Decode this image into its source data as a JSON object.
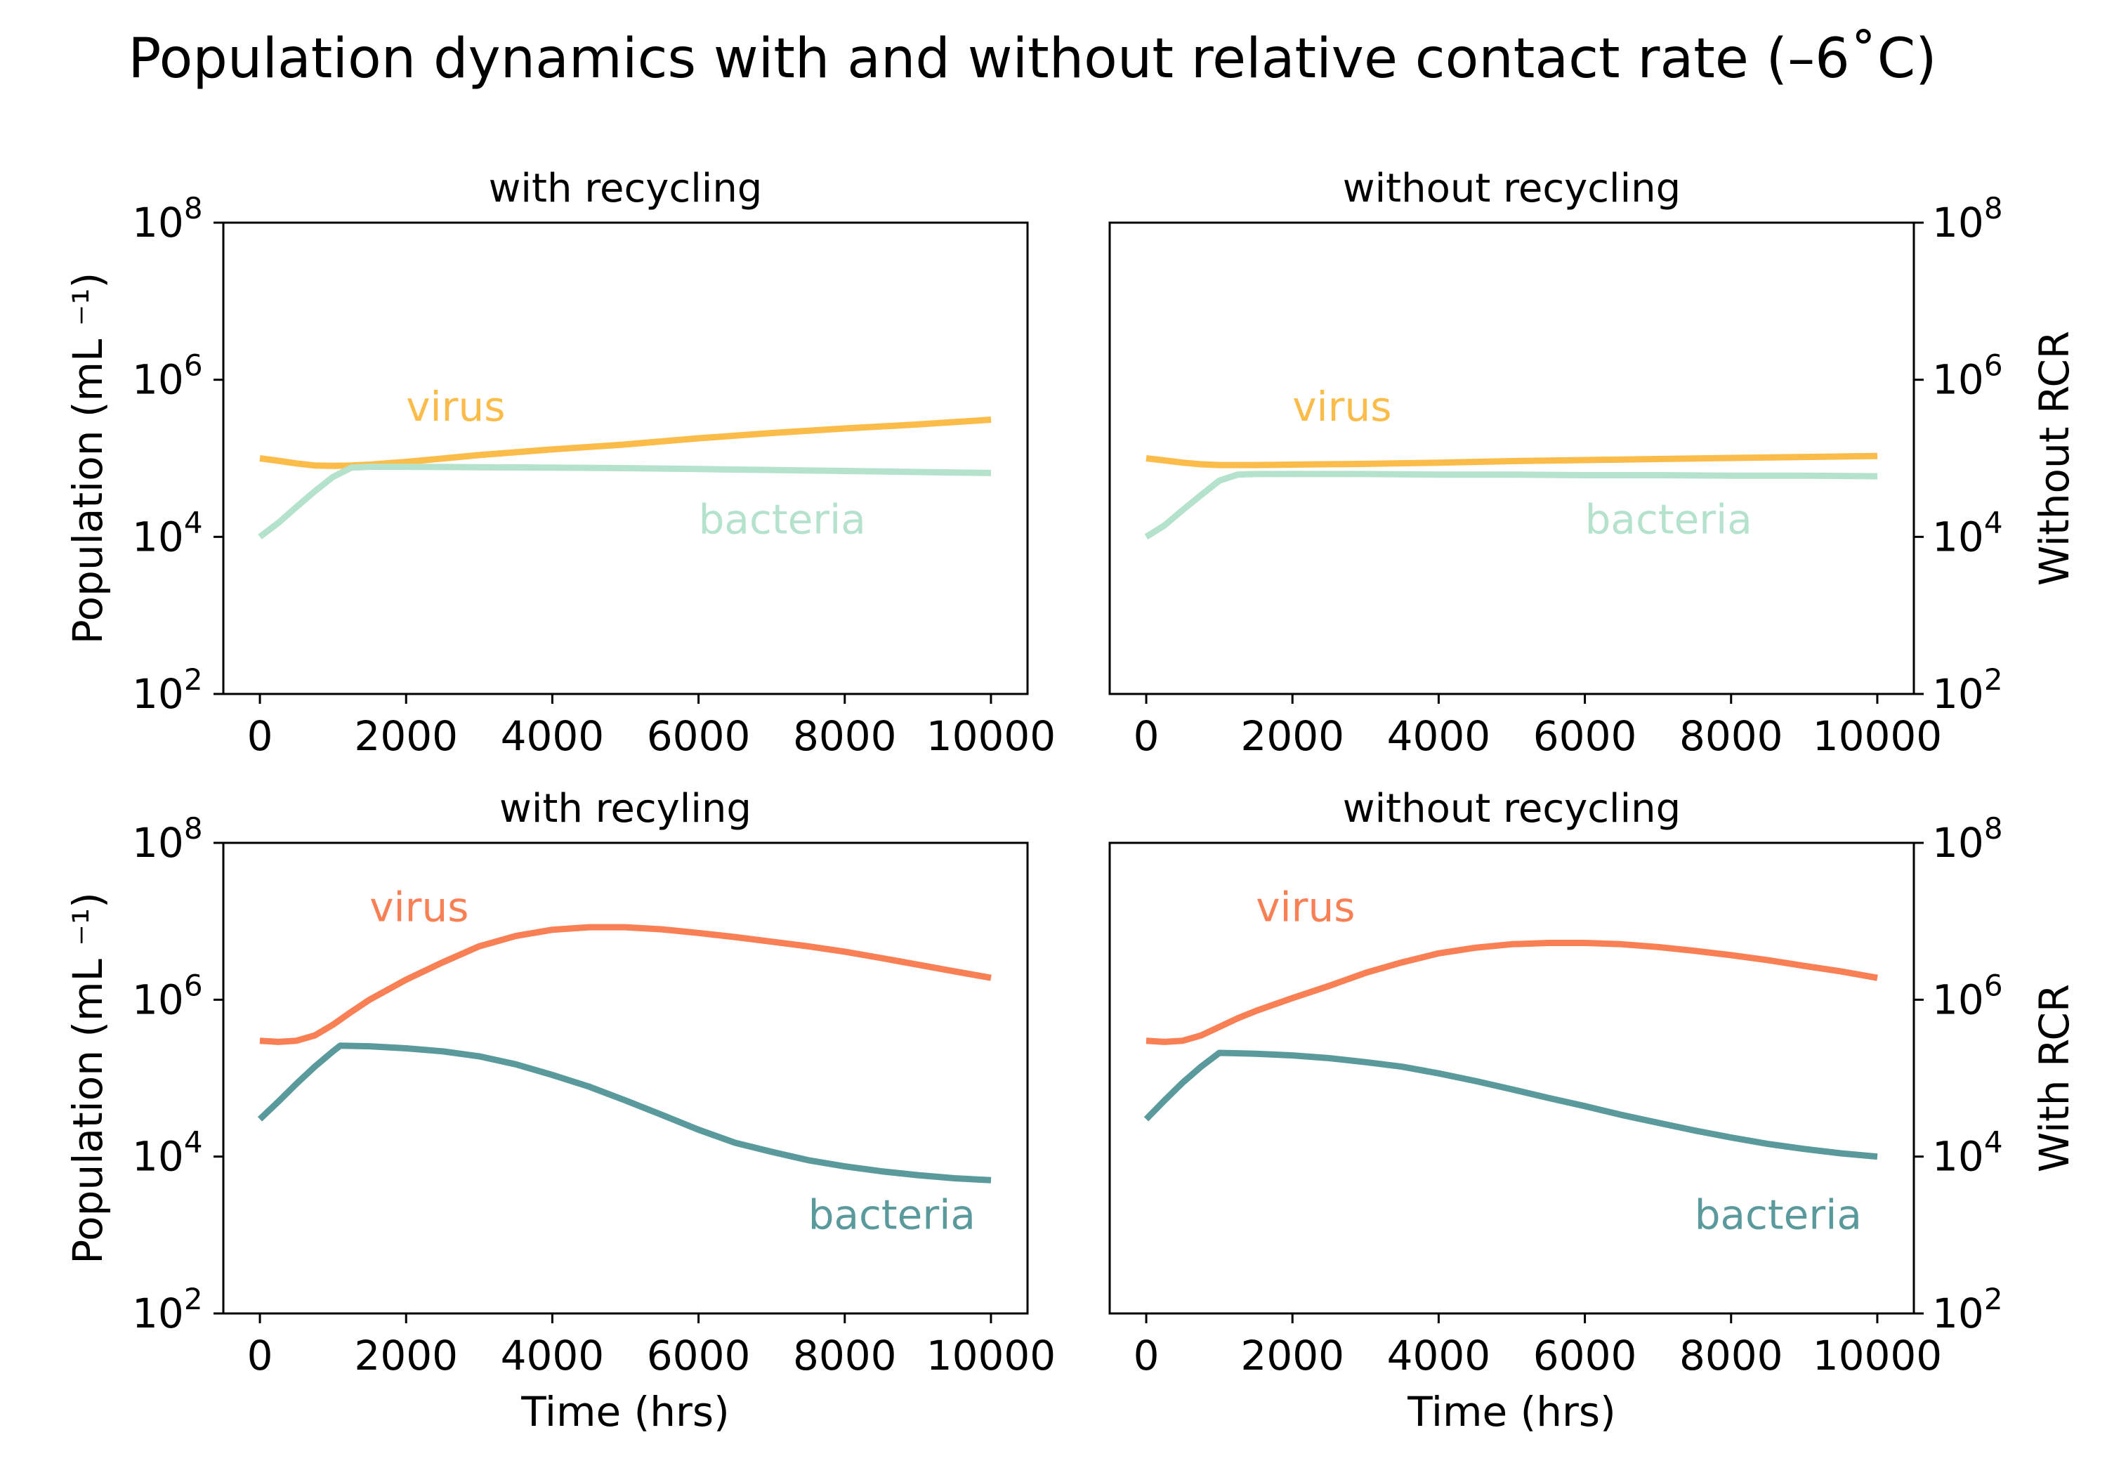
{
  "figure": {
    "title": "Population dynamics with and without relative contact rate (–6˚C)",
    "right_labels": [
      "Without RCR",
      "With RCR"
    ]
  },
  "colors": {
    "virus_top": "#fbbc4a",
    "bacteria_top": "#b5e2cc",
    "virus_bottom": "#f97f54",
    "bacteria_bottom": "#5a9a9c"
  },
  "chart_data": [
    {
      "type": "line",
      "title": "with recycling",
      "xlabel": "",
      "ylabel": "Population (mL ⁻¹)",
      "yscale": "log",
      "xlim": [
        -500,
        10500
      ],
      "ylim": [
        100,
        100000000
      ],
      "xticks": [
        0,
        2000,
        4000,
        6000,
        8000,
        10000
      ],
      "yticks": [
        100,
        10000,
        1000000,
        100000000
      ],
      "ytick_labels": [
        [
          "10",
          "2"
        ],
        [
          "10",
          "4"
        ],
        [
          "10",
          "6"
        ],
        [
          "10",
          "8"
        ]
      ],
      "series": [
        {
          "name": "virus",
          "label_at": [
            2000,
            300000
          ],
          "x": [
            0,
            250,
            500,
            750,
            1000,
            1250,
            1500,
            2000,
            3000,
            4000,
            5000,
            6000,
            7000,
            8000,
            9000,
            10000
          ],
          "y": [
            100000,
            93000,
            86000,
            81000,
            80000,
            81000,
            83000,
            90000,
            110000,
            130000,
            150000,
            180000,
            210000,
            240000,
            270000,
            310000
          ]
        },
        {
          "name": "bacteria",
          "label_at": [
            6000,
            11000
          ],
          "x": [
            0,
            250,
            500,
            750,
            1000,
            1250,
            1500,
            2000,
            3000,
            4000,
            5000,
            6000,
            7000,
            8000,
            9000,
            10000
          ],
          "y": [
            10000,
            15000,
            24000,
            38000,
            58000,
            76000,
            78000,
            78000,
            77000,
            76000,
            75000,
            73000,
            71000,
            69000,
            67000,
            65000
          ]
        }
      ]
    },
    {
      "type": "line",
      "title": "without recycling",
      "xlabel": "",
      "ylabel": "",
      "right_label": "Without RCR",
      "yscale": "log",
      "xlim": [
        -500,
        10500
      ],
      "ylim": [
        100,
        100000000
      ],
      "xticks": [
        0,
        2000,
        4000,
        6000,
        8000,
        10000
      ],
      "yticks": [
        100,
        10000,
        1000000,
        100000000
      ],
      "ytick_labels": [
        [
          "10",
          "2"
        ],
        [
          "10",
          "4"
        ],
        [
          "10",
          "6"
        ],
        [
          "10",
          "8"
        ]
      ],
      "series": [
        {
          "name": "virus",
          "label_at": [
            2000,
            300000
          ],
          "x": [
            0,
            250,
            500,
            750,
            1000,
            1500,
            2000,
            3000,
            4000,
            5000,
            6000,
            7000,
            8000,
            9000,
            10000
          ],
          "y": [
            100000,
            94000,
            88000,
            84000,
            82000,
            82000,
            83000,
            85000,
            88000,
            92000,
            95000,
            98000,
            101000,
            104000,
            107000
          ]
        },
        {
          "name": "bacteria",
          "label_at": [
            6000,
            11000
          ],
          "x": [
            0,
            250,
            500,
            750,
            1000,
            1250,
            1500,
            2000,
            3000,
            4000,
            5000,
            6000,
            7000,
            8000,
            9000,
            10000
          ],
          "y": [
            10000,
            14000,
            22000,
            34000,
            52000,
            62000,
            63000,
            63000,
            63000,
            62000,
            62000,
            61000,
            61000,
            60000,
            60000,
            59000
          ]
        }
      ]
    },
    {
      "type": "line",
      "title": "with recyling",
      "xlabel": "Time (hrs)",
      "ylabel": "Population (mL ⁻¹)",
      "yscale": "log",
      "xlim": [
        -500,
        10500
      ],
      "ylim": [
        100,
        100000000
      ],
      "xticks": [
        0,
        2000,
        4000,
        6000,
        8000,
        10000
      ],
      "yticks": [
        100,
        10000,
        1000000,
        100000000
      ],
      "ytick_labels": [
        [
          "10",
          "2"
        ],
        [
          "10",
          "4"
        ],
        [
          "10",
          "6"
        ],
        [
          "10",
          "8"
        ]
      ],
      "series": [
        {
          "name": "virus",
          "label_at": [
            1500,
            10000000
          ],
          "x": [
            0,
            250,
            500,
            750,
            1000,
            1250,
            1500,
            2000,
            2500,
            3000,
            3500,
            4000,
            4500,
            5000,
            5500,
            6000,
            6500,
            7000,
            7500,
            8000,
            8500,
            9000,
            9500,
            10000
          ],
          "y": [
            300000,
            290000,
            300000,
            350000,
            480000,
            700000,
            1000000,
            1800000,
            3000000,
            4800000,
            6500000,
            7800000,
            8400000,
            8400000,
            7900000,
            7100000,
            6300000,
            5500000,
            4800000,
            4100000,
            3400000,
            2800000,
            2300000,
            1900000
          ]
        },
        {
          "name": "bacteria",
          "label_at": [
            7500,
            1200
          ],
          "x": [
            0,
            250,
            500,
            750,
            1000,
            1100,
            1500,
            2000,
            2500,
            3000,
            3500,
            4000,
            4500,
            5000,
            5500,
            6000,
            6500,
            7000,
            7500,
            8000,
            8500,
            9000,
            9500,
            10000
          ],
          "y": [
            30000,
            50000,
            85000,
            140000,
            220000,
            260000,
            255000,
            240000,
            220000,
            190000,
            150000,
            110000,
            78000,
            52000,
            34000,
            22000,
            15000,
            11500,
            9000,
            7500,
            6500,
            5800,
            5300,
            5000
          ]
        }
      ]
    },
    {
      "type": "line",
      "title": "without recycling",
      "xlabel": "Time (hrs)",
      "ylabel": "",
      "right_label": "With RCR",
      "yscale": "log",
      "xlim": [
        -500,
        10500
      ],
      "ylim": [
        100,
        100000000
      ],
      "xticks": [
        0,
        2000,
        4000,
        6000,
        8000,
        10000
      ],
      "yticks": [
        100,
        10000,
        1000000,
        100000000
      ],
      "ytick_labels": [
        [
          "10",
          "2"
        ],
        [
          "10",
          "4"
        ],
        [
          "10",
          "6"
        ],
        [
          "10",
          "8"
        ]
      ],
      "series": [
        {
          "name": "virus",
          "label_at": [
            1500,
            10000000
          ],
          "x": [
            0,
            250,
            500,
            750,
            1000,
            1250,
            1500,
            2000,
            2500,
            3000,
            3500,
            4000,
            4500,
            5000,
            5500,
            6000,
            6500,
            7000,
            7500,
            8000,
            8500,
            9000,
            9500,
            10000
          ],
          "y": [
            300000,
            290000,
            300000,
            350000,
            450000,
            580000,
            720000,
            1050000,
            1500000,
            2200000,
            3000000,
            3900000,
            4600000,
            5100000,
            5300000,
            5300000,
            5100000,
            4700000,
            4200000,
            3700000,
            3200000,
            2700000,
            2300000,
            1900000
          ]
        },
        {
          "name": "bacteria",
          "label_at": [
            7500,
            1200
          ],
          "x": [
            0,
            250,
            500,
            750,
            1000,
            1500,
            2000,
            2500,
            3000,
            3500,
            4000,
            4500,
            5000,
            5500,
            6000,
            6500,
            7000,
            7500,
            8000,
            8500,
            9000,
            9500,
            10000
          ],
          "y": [
            30000,
            52000,
            88000,
            140000,
            210000,
            205000,
            195000,
            180000,
            160000,
            140000,
            115000,
            92000,
            72000,
            56000,
            44000,
            34000,
            27000,
            21500,
            17500,
            14500,
            12500,
            11000,
            10000
          ]
        }
      ]
    }
  ]
}
